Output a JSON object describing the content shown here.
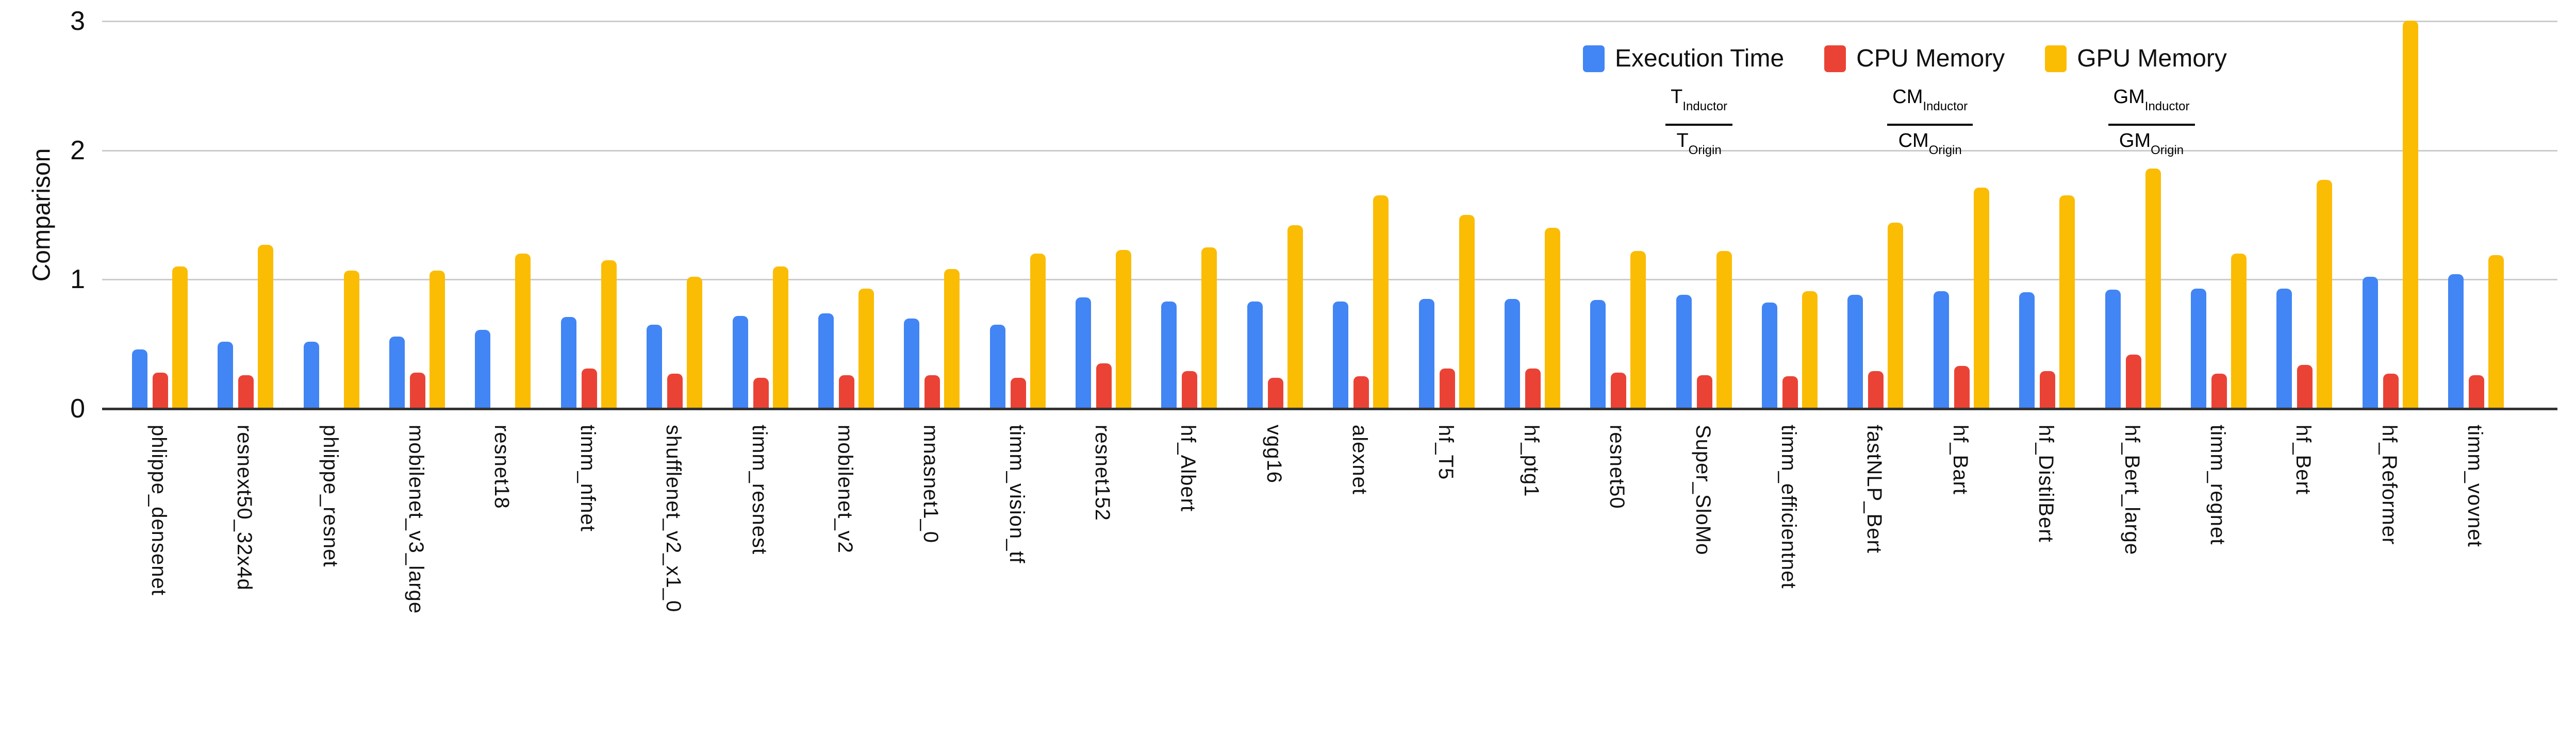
{
  "chart_data": {
    "type": "bar",
    "title": "",
    "xlabel": "",
    "ylabel": "Comparison",
    "ylim": [
      0,
      3
    ],
    "yticks": [
      0,
      1,
      2,
      3
    ],
    "grid": true,
    "legend_position": "top-right",
    "categories": [
      "phlippe_densenet",
      "resnext50_32x4d",
      "phlippe_resnet",
      "mobilenet_v3_large",
      "resnet18",
      "timm_nfnet",
      "shufflenet_v2_x1_0",
      "timm_resnest",
      "mobilenet_v2",
      "mnasnet1_0",
      "timm_vision_tf",
      "resnet152",
      "hf_Albert",
      "vgg16",
      "alexnet",
      "hf_T5",
      "hf_ptg1",
      "resnet50",
      "Super_SloMo",
      "timm_efficientnet",
      "fastNLP_Bert",
      "hf_Bart",
      "hf_DistilBert",
      "hf_Bert_large",
      "timm_regnet",
      "hf_Bert",
      "hf_Reformer",
      "timm_vovnet"
    ],
    "series": [
      {
        "name": "Execution Time",
        "color": "#4285F4",
        "formula": {
          "numerator_base": "T",
          "numerator_sub": "Inductor",
          "denominator_base": "T",
          "denominator_sub": "Origin"
        },
        "values": [
          0.46,
          0.52,
          0.52,
          0.56,
          0.61,
          0.71,
          0.65,
          0.72,
          0.74,
          0.7,
          0.65,
          0.86,
          0.83,
          0.83,
          0.83,
          0.85,
          0.85,
          0.84,
          0.88,
          0.82,
          0.88,
          0.91,
          0.9,
          0.92,
          0.93,
          0.93,
          1.02,
          1.04
        ]
      },
      {
        "name": "CPU Memory",
        "color": "#EA4335",
        "formula": {
          "numerator_base": "CM",
          "numerator_sub": "Inductor",
          "denominator_base": "CM",
          "denominator_sub": "Origin"
        },
        "values": [
          0.28,
          0.26,
          null,
          0.28,
          null,
          0.31,
          0.27,
          0.24,
          0.26,
          0.26,
          0.24,
          0.35,
          0.29,
          0.24,
          0.25,
          0.31,
          0.31,
          0.28,
          0.26,
          0.25,
          0.29,
          0.33,
          0.29,
          0.42,
          0.27,
          0.34,
          0.27,
          0.26
        ]
      },
      {
        "name": "GPU Memory",
        "color": "#FBBC04",
        "formula": {
          "numerator_base": "GM",
          "numerator_sub": "Inductor",
          "denominator_base": "GM",
          "denominator_sub": "Origin"
        },
        "values": [
          1.1,
          1.27,
          1.07,
          1.07,
          1.2,
          1.15,
          1.02,
          1.1,
          0.93,
          1.08,
          1.2,
          1.23,
          1.25,
          1.42,
          1.65,
          1.5,
          1.4,
          1.22,
          1.22,
          0.91,
          1.44,
          1.71,
          1.65,
          1.86,
          1.2,
          1.77,
          3.02,
          1.19
        ]
      }
    ],
    "y_tick_labels": [
      "0",
      "1",
      "2",
      "3"
    ]
  },
  "layout_colors": {
    "gridline": "#cccccc",
    "axis_baseline": "#333333",
    "text": "#111111"
  }
}
